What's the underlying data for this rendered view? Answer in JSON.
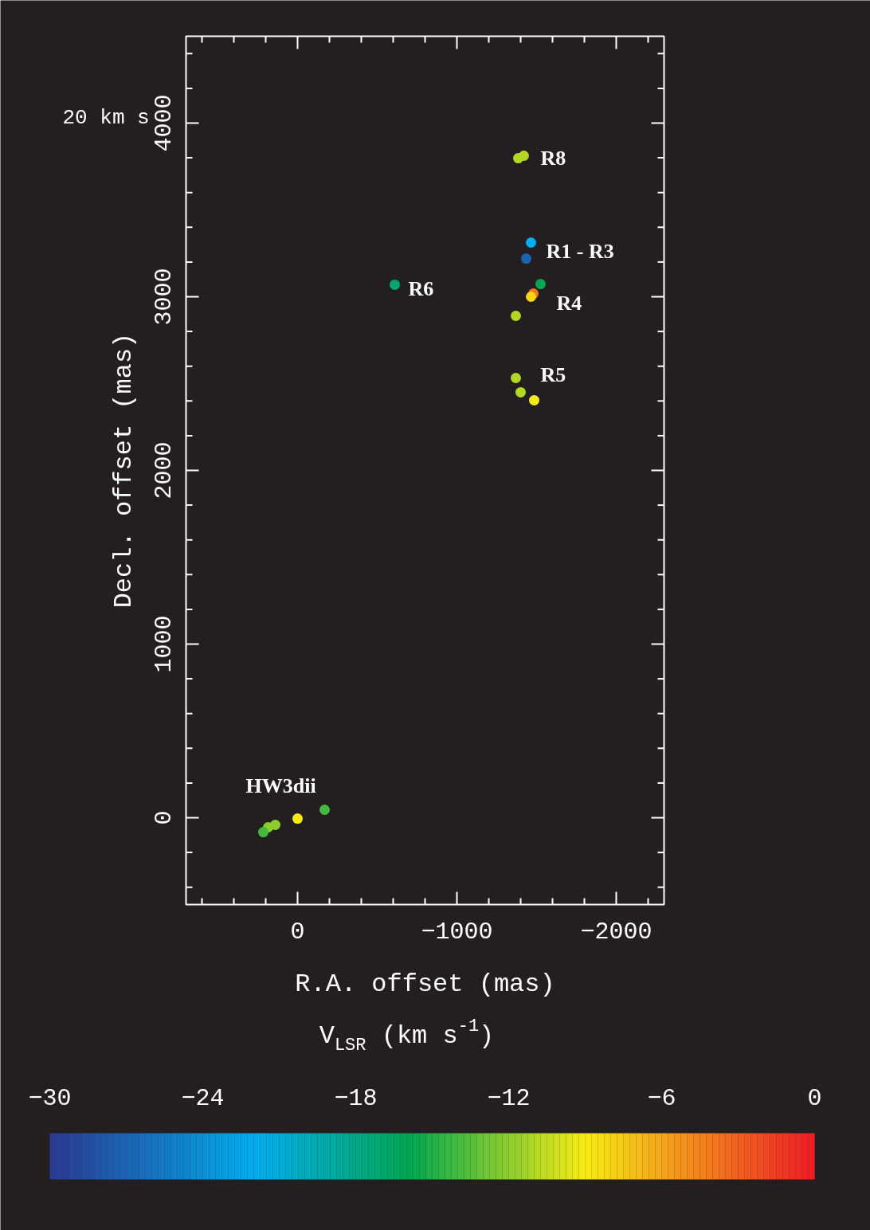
{
  "chart_data": {
    "type": "scatter",
    "xlabel": "R.A. offset (mas)",
    "ylabel": "Decl. offset (mas)",
    "clabel": "V$_{LSR}$ (km s$^{-1}$)",
    "x": [
      -1385,
      -1420,
      -1465,
      -1435,
      -1480,
      -1525,
      -1465,
      -1370,
      -610,
      -1370,
      -1400,
      -1485,
      0,
      -170,
      140,
      185,
      215
    ],
    "values": [
      3798,
      3812,
      3312,
      3220,
      3018,
      3073,
      3000,
      2890,
      3069,
      2532,
      2450,
      2404,
      -5,
      46,
      -41,
      -55,
      -83
    ],
    "cvalues": [
      -11,
      -11,
      -22,
      -27,
      -4,
      -16,
      -8,
      -11,
      -17,
      -11,
      -11,
      -9,
      -9,
      -14,
      -12,
      -12,
      -14
    ],
    "marker": "circle",
    "grid": false,
    "xlim": [
      700,
      -2300
    ],
    "ylim": [
      -500,
      4500
    ],
    "xticks": [
      {
        "value": 0,
        "label": "0"
      },
      {
        "value": -1000,
        "label": "−1000"
      },
      {
        "value": -2000,
        "label": "−2000"
      }
    ],
    "yticks": [
      0,
      1000,
      2000,
      3000,
      4000
    ],
    "clim": [
      -30,
      0
    ],
    "cticks": [
      {
        "value": -30,
        "label": "−30"
      },
      {
        "value": -24,
        "label": "−24"
      },
      {
        "value": -18,
        "label": "−18"
      },
      {
        "value": -12,
        "label": "−12"
      },
      {
        "value": -6,
        "label": "−6"
      },
      {
        "value": 0,
        "label": "0"
      }
    ],
    "annotations": [
      "R8",
      "R1 - R3",
      "R4",
      "R5",
      "R6",
      "HW3dii",
      "20 km s"
    ]
  }
}
